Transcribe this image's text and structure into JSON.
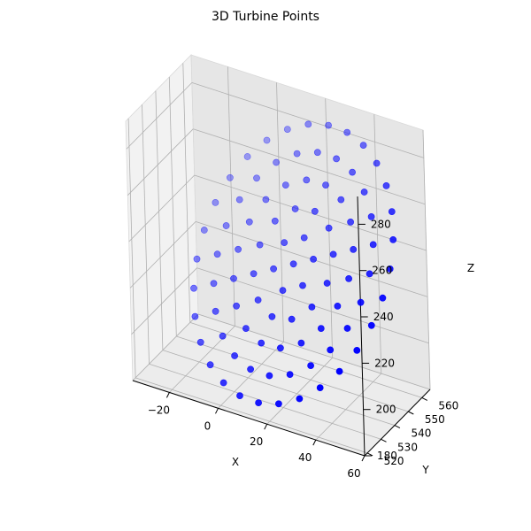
{
  "chart_data": {
    "type": "scatter",
    "title": "3D Turbine Points",
    "xlabel": "X",
    "ylabel": "Y",
    "zlabel": "Z",
    "xlim": [
      -35,
      60
    ],
    "ylim": [
      518,
      566
    ],
    "zlim": [
      180,
      292
    ],
    "x_ticks": [
      "−20",
      "0",
      "20",
      "40",
      "60"
    ],
    "y_ticks": [
      "520",
      "530",
      "540",
      "550",
      "560"
    ],
    "z_ticks": [
      "180",
      "200",
      "220",
      "240",
      "260",
      "280"
    ],
    "grid": true,
    "marker_color": "#0000ff",
    "description_note": "",
    "ring": {
      "center": [
        20,
        540,
        236
      ],
      "radius": 50,
      "rings": [
        {
          "r": 10,
          "n": 6
        },
        {
          "r": 20,
          "n": 12
        },
        {
          "r": 30,
          "n": 18
        },
        {
          "r": 40,
          "n": 24
        },
        {
          "r": 50,
          "n": 30
        }
      ]
    }
  }
}
